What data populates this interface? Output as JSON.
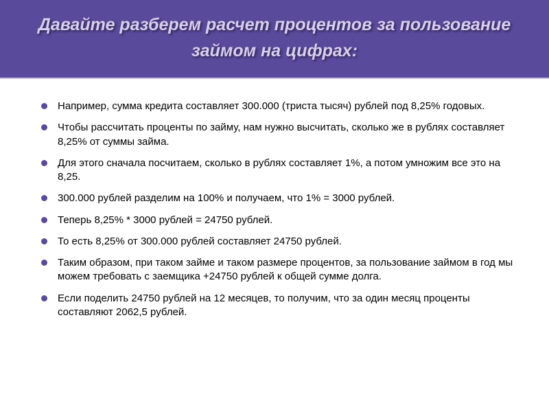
{
  "slide": {
    "title": "Давайте разберем расчет процентов за пользование займом на цифрах:",
    "header_bg": "#5a4a9c",
    "header_text_color": "#d8d0f0",
    "bullet_color": "#5a4a9c",
    "text_color": "#000000",
    "title_fontsize": 25,
    "body_fontsize": 15,
    "bullets": [
      "Например, сумма кредита составляет 300.000 (триста тысяч) рублей под 8,25% годовых.",
      "Чтобы рассчитать проценты по займу, нам нужно высчитать, сколько же в рублях составляет 8,25% от суммы займа.",
      "Для этого сначала посчитаем, сколько в рублях составляет 1%, а потом умножим все это на 8,25.",
      "300.000 рублей разделим на 100% и получаем, что 1% = 3000 рублей.",
      "Теперь 8,25% * 3000 рублей = 24750 рублей.",
      "То есть 8,25% от 300.000 рублей составляет 24750 рублей.",
      "Таким образом, при таком займе и таком размере процентов, за пользование займом в год мы можем требовать с заемщика +24750 рублей к общей сумме долга.",
      "Если поделить 24750 рублей на 12 месяцев, то получим, что за один месяц проценты составляют 2062,5 рублей."
    ]
  }
}
